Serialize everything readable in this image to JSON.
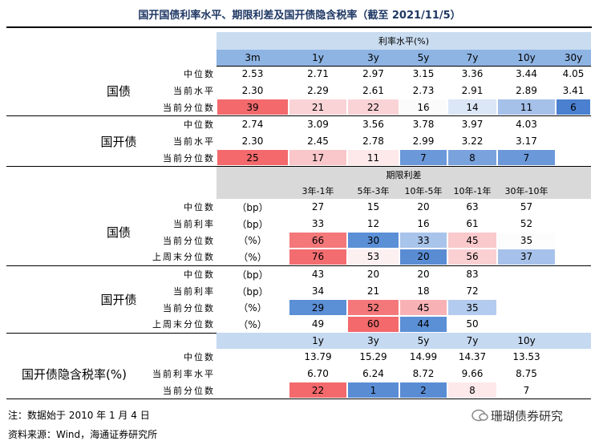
{
  "title": "国开国债利率水平、期限利差及国开债隐含税率（截至 2021/11/5）",
  "rates": {
    "header": "利率水平(%)",
    "columns": [
      "3m",
      "1y",
      "3y",
      "5y",
      "7y",
      "10y",
      "30y"
    ],
    "groups": [
      {
        "name": "国债",
        "rows": [
          {
            "label": "中位数",
            "values": [
              "2.53",
              "2.71",
              "2.97",
              "3.15",
              "3.36",
              "3.44",
              "4.05"
            ]
          },
          {
            "label": "当前水平",
            "values": [
              "2.30",
              "2.29",
              "2.61",
              "2.73",
              "2.91",
              "2.89",
              "3.41"
            ]
          },
          {
            "label": "当前分位数",
            "values": [
              "39",
              "21",
              "22",
              "16",
              "14",
              "11",
              "6"
            ],
            "colors": [
              "#f3696c",
              "#fad3d6",
              "#fad3d6",
              "#fbfbfb",
              "#dbe6f6",
              "#a5c0e9",
              "#4a80cf"
            ]
          }
        ]
      },
      {
        "name": "国开债",
        "rows": [
          {
            "label": "中位数",
            "values": [
              "2.74",
              "3.09",
              "3.56",
              "3.78",
              "3.97",
              "4.03"
            ]
          },
          {
            "label": "当前水平",
            "values": [
              "2.30",
              "2.45",
              "2.78",
              "2.99",
              "3.22",
              "3.17"
            ]
          },
          {
            "label": "当前分位数",
            "values": [
              "25",
              "17",
              "11",
              "7",
              "8",
              "7"
            ],
            "colors": [
              "#f3696c",
              "#f9c6c9",
              "#fde9ea",
              "#6b98d9",
              "#7aa3dd",
              "#6b98d9"
            ]
          }
        ]
      }
    ]
  },
  "spreads": {
    "header": "期限利差",
    "columns": [
      "3年-1年",
      "5年-3年",
      "10年-5年",
      "10年-1年",
      "30年-10年"
    ],
    "groups": [
      {
        "name": "国债",
        "rows": [
          {
            "label": "中位数",
            "unit": "（bp）",
            "values": [
              "27",
              "15",
              "20",
              "63",
              "57"
            ]
          },
          {
            "label": "当前利率",
            "unit": "（bp）",
            "values": [
              "33",
              "12",
              "16",
              "61",
              "52"
            ]
          },
          {
            "label": "当前分位数",
            "unit": "（%）",
            "values": [
              "66",
              "30",
              "33",
              "45",
              "35"
            ],
            "colors": [
              "#f4787a",
              "#5b8fd6",
              "#a9c4ea",
              "#f9c9cc",
              "#fcfcfc"
            ]
          },
          {
            "label": "上周末分位数",
            "unit": "（%）",
            "values": [
              "76",
              "53",
              "20",
              "56",
              "37"
            ],
            "colors": [
              "#f36d70",
              "#fdf0f1",
              "#5a8cd4",
              "#fad0d3",
              "#a7c2ea"
            ]
          }
        ]
      },
      {
        "name": "国开债",
        "rows": [
          {
            "label": "中位数",
            "unit": "（bp）",
            "values": [
              "43",
              "20",
              "20",
              "83"
            ]
          },
          {
            "label": "当前利率",
            "unit": "（bp）",
            "values": [
              "34",
              "21",
              "18",
              "72"
            ]
          },
          {
            "label": "当前分位数",
            "unit": "（%）",
            "values": [
              "29",
              "52",
              "45",
              "35"
            ],
            "colors": [
              "#5b8fd6",
              "#f4787a",
              "#f8b2b6",
              "#b3cbee"
            ]
          },
          {
            "label": "上周末分位数",
            "unit": "（%）",
            "values": [
              "49",
              "60",
              "44",
              "50"
            ],
            "colors": [
              "#ffffff",
              "#f3696c",
              "#5b8fd6",
              "#ffffff"
            ]
          }
        ]
      }
    ]
  },
  "tax": {
    "name": "国开债隐含税率(%)",
    "columns": [
      "1y",
      "3y",
      "5y",
      "7y",
      "10y"
    ],
    "rows": [
      {
        "label": "中位数",
        "values": [
          "13.79",
          "15.29",
          "14.99",
          "14.37",
          "13.53"
        ]
      },
      {
        "label": "当前利率水平",
        "values": [
          "6.70",
          "6.24",
          "8.72",
          "9.66",
          "8.75"
        ]
      },
      {
        "label": "当前分位数",
        "values": [
          "22",
          "1",
          "2",
          "8",
          "7"
        ],
        "colors": [
          "#f3696c",
          "#5a8cd4",
          "#5a8cd4",
          "#fde8ea",
          "#ffffff"
        ]
      }
    ]
  },
  "notes": [
    "注：数据始于 2010 年 1 月 4 日",
    "资料来源：Wind，海通证券研究所"
  ],
  "watermark": "珊瑚债券研究"
}
